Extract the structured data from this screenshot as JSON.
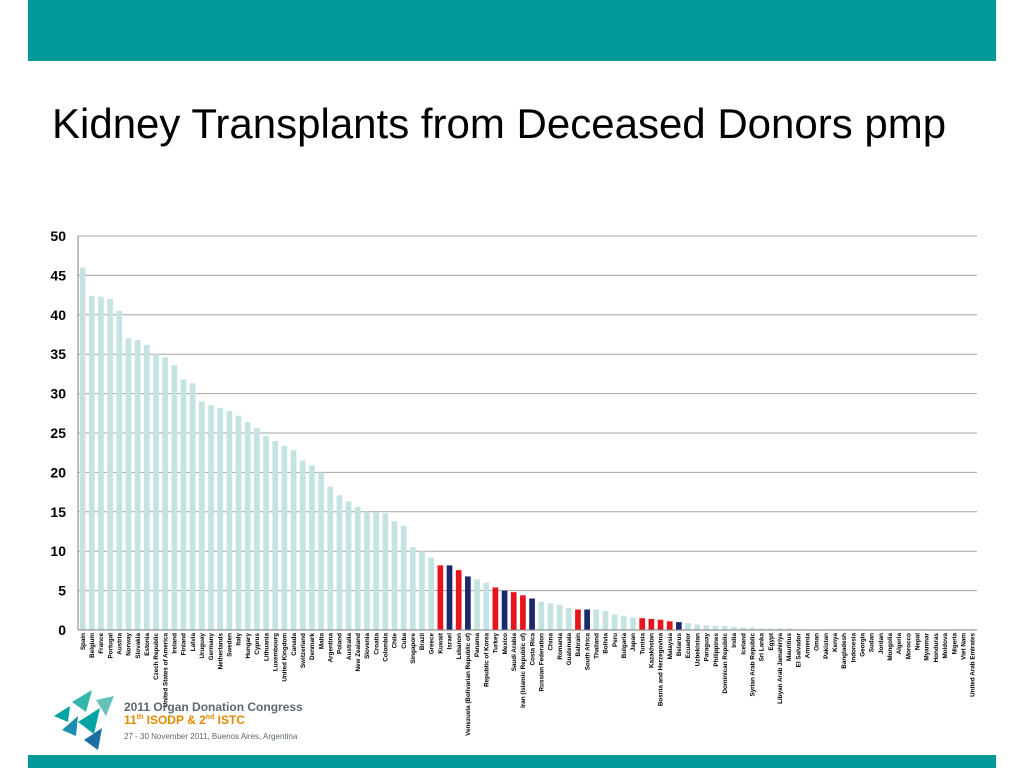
{
  "slide": {
    "title": "Kidney Transplants from Deceased Donors pmp"
  },
  "footer": {
    "congress_title": "2011 Organ Donation Congress",
    "isodp_num": "11",
    "isodp_sup": "th",
    "isodp_name": " ISODP & 2",
    "istc_sup": "nd",
    "istc_name": " ISTC",
    "dates": "27 - 30 November 2011, Buenos Aires, Argentina"
  },
  "colors": {
    "band": "#009999",
    "bar_default": "#c5e3e3",
    "bar_red": "#e8141c",
    "bar_navy": "#1c2a6b",
    "gridline": "#a6a6a6"
  },
  "chart_data": {
    "type": "bar",
    "title": "",
    "xlabel": "",
    "ylabel": "",
    "ylim": [
      0,
      50
    ],
    "yticks": [
      0,
      5,
      10,
      15,
      20,
      25,
      30,
      35,
      40,
      45,
      50
    ],
    "grid": true,
    "categories": [
      "Spain",
      "Belgium",
      "France",
      "Portugal",
      "Austria",
      "Norway",
      "Slovakia",
      "Estonia",
      "Czech Republic",
      "United States of America",
      "Ireland",
      "Finland",
      "Latvia",
      "Uruguay",
      "Germany",
      "Netherlands",
      "Sweden",
      "Italy",
      "Hungary",
      "Cyprus",
      "Lithuania",
      "Luxembourg",
      "United Kingdom",
      "Canada",
      "Switzerland",
      "Denmark",
      "Malta",
      "Argentina",
      "Poland",
      "Australia",
      "New Zealand",
      "Slovenia",
      "Croatia",
      "Colombia",
      "Chile",
      "Cuba",
      "Singapore",
      "Brazil",
      "Greece",
      "Kuwait",
      "Israel",
      "Lebanon",
      "Venezuela (Bolivarian Republic of)",
      "Panama",
      "Republic of Korea",
      "Turkey",
      "Mexico",
      "Saudi Arabia",
      "Iran (Islamic Republic of)",
      "Costa Rica",
      "Russian Federation",
      "China",
      "Romania",
      "Guatemala",
      "Bahrain",
      "South Africa",
      "Thailand",
      "Bolivia",
      "Peru",
      "Bulgaria",
      "Japan",
      "Tunisia",
      "Kazakhstan",
      "Bosnia and Herzegovina",
      "Malaysia",
      "Belarus",
      "Ecuador",
      "Uzbekistan",
      "Paraguay",
      "Philippines",
      "Dominican Republic",
      "India",
      "Iceland",
      "Syrian Arab Republic",
      "Sri Lanka",
      "Egypt",
      "Libyan Arab Jamahiriya",
      "Mauritius",
      "El Salvador",
      "Armenia",
      "Oman",
      "Pakistan",
      "Kenya",
      "Bangladesh",
      "Indonesia",
      "Georgia",
      "Sudan",
      "Jordan",
      "Mongolia",
      "Algeria",
      "Morocco",
      "Nepal",
      "Myanmar",
      "Honduras",
      "Moldova",
      "Nigeria",
      "Viet Nam",
      "United Arab Emirates"
    ],
    "values": [
      46.0,
      42.4,
      42.3,
      42.0,
      40.5,
      37.0,
      36.8,
      36.2,
      35.0,
      34.6,
      33.6,
      31.8,
      31.3,
      29.0,
      28.5,
      28.2,
      27.8,
      27.2,
      26.4,
      25.6,
      24.6,
      24.0,
      23.4,
      22.8,
      21.5,
      20.9,
      20.0,
      18.2,
      17.1,
      16.3,
      15.6,
      15.0,
      14.9,
      14.8,
      13.8,
      13.2,
      10.5,
      10.0,
      9.2,
      8.2,
      8.2,
      7.6,
      6.8,
      6.4,
      6.0,
      5.4,
      5.0,
      4.8,
      4.4,
      4.0,
      3.6,
      3.4,
      3.2,
      2.8,
      2.6,
      2.6,
      2.6,
      2.4,
      2.0,
      1.8,
      1.6,
      1.5,
      1.4,
      1.3,
      1.1,
      1.0,
      0.9,
      0.7,
      0.6,
      0.5,
      0.5,
      0.4,
      0.3,
      0.3,
      0.2,
      0.2,
      0.2,
      0.2,
      0.1,
      0.1,
      0.1,
      0.1,
      0.1,
      0.1,
      0.1,
      0.1,
      0.1,
      0.1,
      0.1,
      0.1,
      0.1,
      0.1,
      0.1,
      0.1,
      0.1,
      0.1,
      0.1,
      0.1
    ],
    "highlight_red": [
      "Kuwait",
      "Lebanon",
      "Turkey",
      "Saudi Arabia",
      "Iran (Islamic Republic of)",
      "Bahrain",
      "Tunisia",
      "Kazakhstan",
      "Malaysia",
      "Bosnia and Herzegovina"
    ],
    "highlight_navy": [
      "Israel",
      "Venezuela (Bolivarian Republic of)",
      "Mexico",
      "Costa Rica",
      "South Africa",
      "Belarus"
    ]
  }
}
